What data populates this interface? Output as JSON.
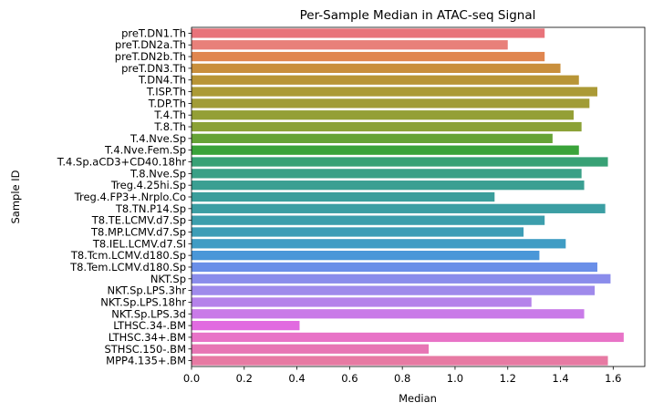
{
  "chart_data": {
    "type": "bar",
    "orientation": "horizontal",
    "title": "Per-Sample Median in ATAC-seq Signal",
    "xlabel": "Median",
    "ylabel": "Sample ID",
    "xlim": [
      0,
      1.72
    ],
    "xticks": [
      "0.0",
      "0.2",
      "0.4",
      "0.6",
      "0.8",
      "1.0",
      "1.2",
      "1.4",
      "1.6"
    ],
    "grid": false,
    "legend": "none",
    "categories": [
      "preT.DN1.Th",
      "preT.DN2a.Th",
      "preT.DN2b.Th",
      "preT.DN3.Th",
      "T.DN4.Th",
      "T.ISP.Th",
      "T.DP.Th",
      "T.4.Th",
      "T.8.Th",
      "T.4.Nve.Sp",
      "T.4.Nve.Fem.Sp",
      "T.4.Sp.aCD3+CD40.18hr",
      "T.8.Nve.Sp",
      "Treg.4.25hi.Sp",
      "Treg.4.FP3+.Nrplo.Co",
      "T8.TN.P14.Sp",
      "T8.TE.LCMV.d7.Sp",
      "T8.MP.LCMV.d7.Sp",
      "T8.IEL.LCMV.d7.SI",
      "T8.Tcm.LCMV.d180.Sp",
      "T8.Tem.LCMV.d180.Sp",
      "NKT.Sp",
      "NKT.Sp.LPS.3hr",
      "NKT.Sp.LPS.18hr",
      "NKT.Sp.LPS.3d",
      "LTHSC.34-.BM",
      "LTHSC.34+.BM",
      "STHSC.150-.BM",
      "MPP4.135+.BM"
    ],
    "values": [
      1.34,
      1.2,
      1.34,
      1.4,
      1.47,
      1.54,
      1.51,
      1.45,
      1.48,
      1.37,
      1.47,
      1.58,
      1.48,
      1.49,
      1.15,
      1.57,
      1.34,
      1.26,
      1.42,
      1.32,
      1.54,
      1.59,
      1.53,
      1.29,
      1.49,
      0.41,
      1.64,
      0.9,
      1.58
    ],
    "colors": [
      "#e8737a",
      "#e8807a",
      "#e0864f",
      "#c98f3c",
      "#b89536",
      "#ab9a36",
      "#a19c36",
      "#949f36",
      "#8ba136",
      "#66a336",
      "#3aa33a",
      "#38a175",
      "#39a086",
      "#3a9f92",
      "#3b9e9b",
      "#3b9ea3",
      "#3c9eac",
      "#3d9db6",
      "#3f9cc4",
      "#4a97d8",
      "#6a8fe8",
      "#8a8ceb",
      "#9f8aeb",
      "#b582ea",
      "#c97ae8",
      "#e16be0",
      "#e873c7",
      "#e776b4",
      "#e77aa3"
    ]
  }
}
